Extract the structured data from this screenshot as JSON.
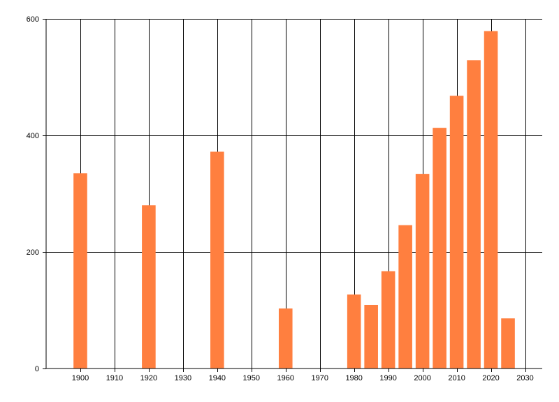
{
  "chart_data": {
    "type": "bar",
    "x": [
      1900,
      1920,
      1940,
      1960,
      1980,
      1985,
      1990,
      1995,
      2000,
      2005,
      2010,
      2015,
      2020,
      2025
    ],
    "values": [
      335,
      280,
      372,
      103,
      127,
      109,
      167,
      246,
      334,
      413,
      468,
      529,
      579,
      86
    ],
    "xlim": [
      1890,
      2035
    ],
    "ylim": [
      0,
      600
    ],
    "x_ticks": [
      1900,
      1910,
      1920,
      1930,
      1940,
      1950,
      1960,
      1970,
      1980,
      1990,
      2000,
      2010,
      2020,
      2030
    ],
    "y_ticks": [
      0,
      200,
      400,
      600
    ],
    "bar_width_years": 4,
    "grid": true,
    "bar_color": "#ff7f3f",
    "grid_color": "#000000",
    "title": "",
    "xlabel": "",
    "ylabel": ""
  }
}
